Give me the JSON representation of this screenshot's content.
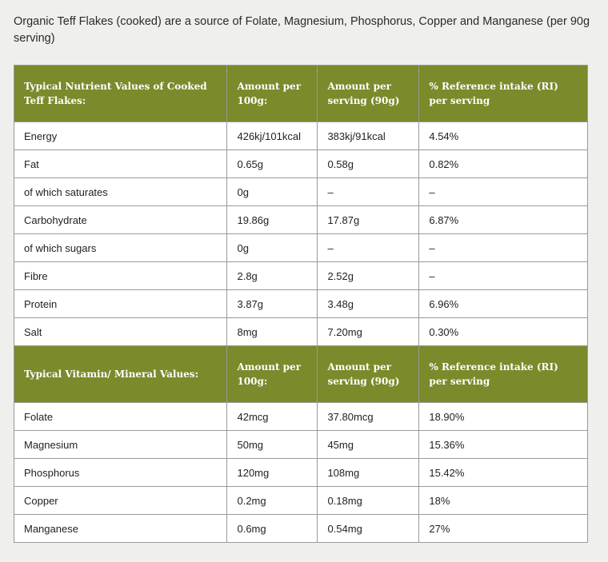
{
  "intro": "Organic Teff Flakes (cooked) are a source of Folate, Magnesium, Phosphorus, Copper and Manganese (per 90g serving)",
  "colors": {
    "header_bg": "#7b8a2b"
  },
  "nutrients": {
    "headers": [
      "Typical Nutrient Values of Cooked Teff Flakes:",
      "Amount per 100g:",
      "Amount per serving (90g)",
      "% Reference intake (RI) per serving"
    ],
    "rows": [
      [
        "Energy",
        "426kj/101kcal",
        "383kj/91kcal",
        "4.54%"
      ],
      [
        "Fat",
        "0.65g",
        "0.58g",
        "0.82%"
      ],
      [
        "of which saturates",
        "0g",
        "–",
        "–"
      ],
      [
        "Carbohydrate",
        "19.86g",
        "17.87g",
        "6.87%"
      ],
      [
        "of which sugars",
        "0g",
        "–",
        "–"
      ],
      [
        "Fibre",
        "2.8g",
        "2.52g",
        "–"
      ],
      [
        "Protein",
        "3.87g",
        "3.48g",
        "6.96%"
      ],
      [
        "Salt",
        "8mg",
        "7.20mg",
        "0.30%"
      ]
    ]
  },
  "vitamins": {
    "headers": [
      "Typical Vitamin/ Mineral Values:",
      "Amount per 100g:",
      "Amount per serving (90g)",
      "% Reference intake (RI) per serving"
    ],
    "rows": [
      [
        "Folate",
        "42mcg",
        "37.80mcg",
        "18.90%"
      ],
      [
        "Magnesium",
        "50mg",
        "45mg",
        "15.36%"
      ],
      [
        "Phosphorus",
        "120mg",
        "108mg",
        "15.42%"
      ],
      [
        "Copper",
        "0.2mg",
        "0.18mg",
        "18%"
      ],
      [
        "Manganese",
        "0.6mg",
        "0.54mg",
        "27%"
      ]
    ]
  }
}
